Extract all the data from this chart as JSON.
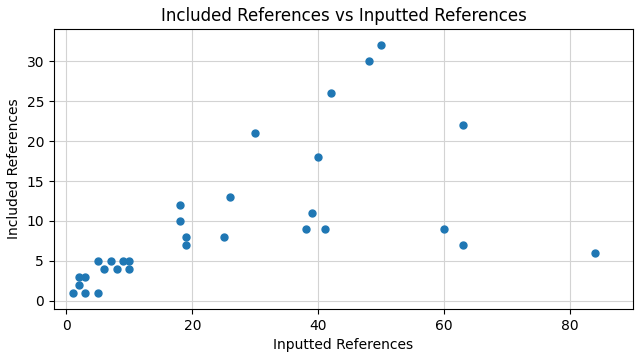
{
  "title": "Included References vs Inputted References",
  "xlabel": "Inputted References",
  "ylabel": "Included References",
  "x": [
    1,
    2,
    2,
    3,
    3,
    5,
    5,
    6,
    7,
    8,
    9,
    10,
    10,
    18,
    18,
    19,
    19,
    25,
    26,
    30,
    38,
    39,
    40,
    41,
    42,
    48,
    50,
    60,
    63,
    63,
    84
  ],
  "y": [
    1,
    2,
    3,
    1,
    3,
    5,
    1,
    4,
    5,
    4,
    5,
    4,
    5,
    10,
    12,
    7,
    8,
    8,
    13,
    21,
    9,
    11,
    18,
    9,
    26,
    30,
    32,
    9,
    7,
    22,
    6
  ],
  "color": "#1f77b4",
  "marker": "o",
  "markersize": 25,
  "xlim": [
    -2,
    90
  ],
  "ylim": [
    -1,
    34
  ],
  "xticks": [
    0,
    20,
    40,
    60,
    80
  ],
  "yticks": [
    0,
    5,
    10,
    15,
    20,
    25,
    30
  ],
  "grid": true,
  "background_color": "#ffffff",
  "title_fontsize": 12,
  "label_fontsize": 10
}
